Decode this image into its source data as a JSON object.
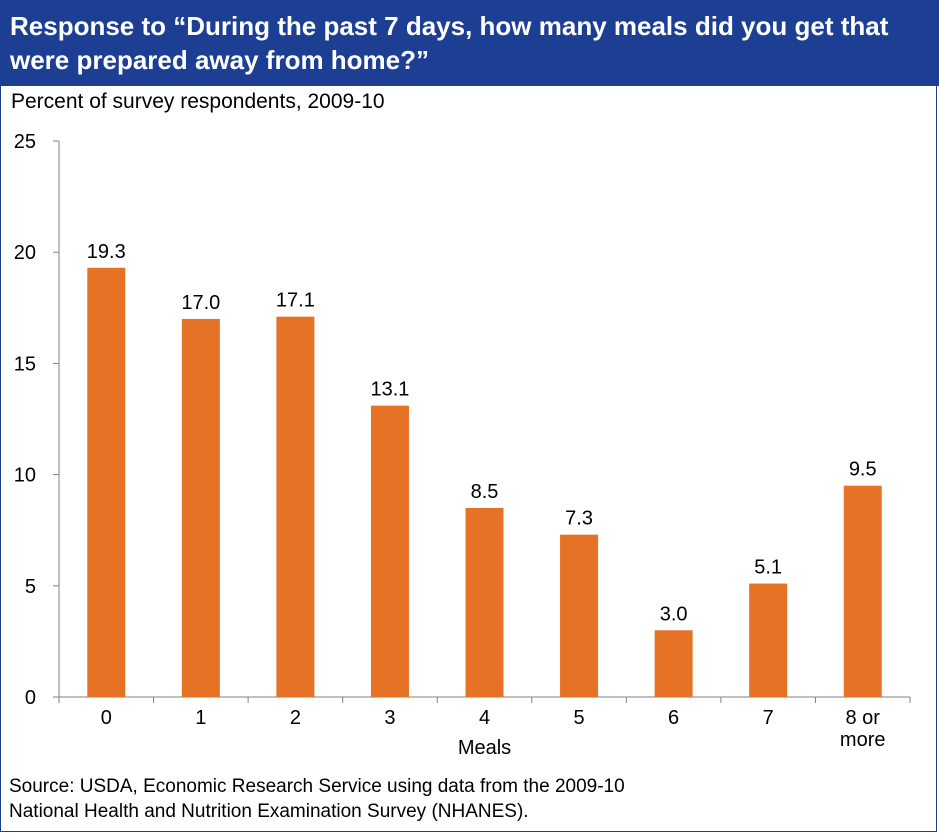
{
  "colors": {
    "header_bg": "#1c3f94",
    "bar": "#e67325",
    "axis": "#808080"
  },
  "header": {
    "title": "Response to “During the past 7 days, how many meals did you get that were prepared away from home?”"
  },
  "source": {
    "line1": "Source: USDA, Economic Research Service using data from the 2009-10",
    "line2": "National Health and Nutrition Examination Survey (NHANES)."
  },
  "chart_data": {
    "type": "bar",
    "ylabel": "Percent of survey respondents, 2009-10",
    "xlabel": "Meals",
    "ylim": [
      0,
      25
    ],
    "yticks": [
      0,
      5,
      10,
      15,
      20,
      25
    ],
    "categories": [
      "0",
      "1",
      "2",
      "3",
      "4",
      "5",
      "6",
      "7",
      "8 or more"
    ],
    "values": [
      19.3,
      17.0,
      17.1,
      13.1,
      8.5,
      7.3,
      3.0,
      5.1,
      9.5
    ],
    "value_labels": [
      "19.3",
      "17.0",
      "17.1",
      "13.1",
      "8.5",
      "7.3",
      "3.0",
      "5.1",
      "9.5"
    ],
    "grid": false,
    "legend": "none"
  }
}
